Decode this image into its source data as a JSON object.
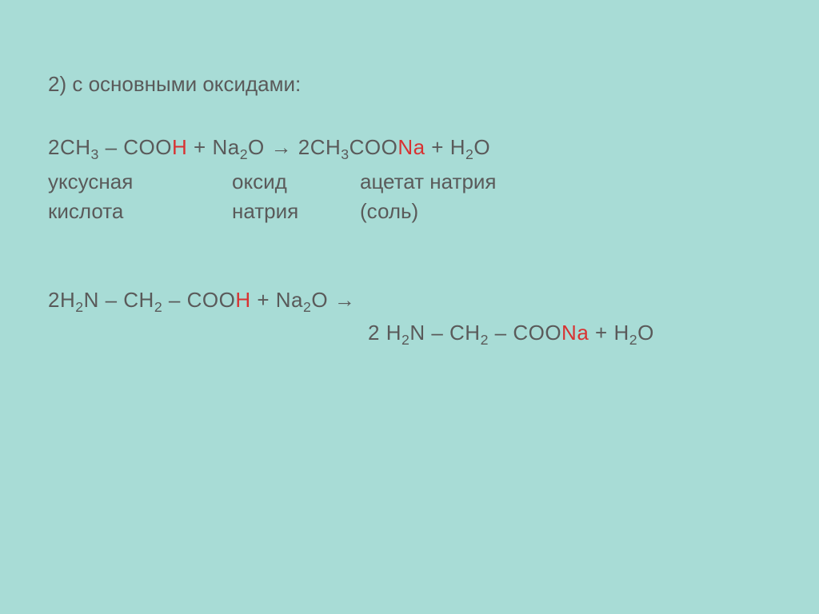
{
  "slide": {
    "background_color": "#a8dcd6",
    "text_color": "#5a5a5a",
    "highlight_color": "#d83232",
    "font_family": "Arial",
    "heading_fontsize": 26,
    "body_fontsize": 26
  },
  "heading": "2) с основными оксидами:",
  "equation1": {
    "reactant1_coef": "2",
    "reactant1_part1": "CH",
    "reactant1_sub1": "3",
    "reactant1_part2": " – COO",
    "reactant1_highlight": "H",
    "plus1": " + ",
    "reactant2_part1": "Na",
    "reactant2_sub1": "2",
    "reactant2_part2": "O",
    "arrow": " → ",
    "product1_coef": "2",
    "product1_part1": "CH",
    "product1_sub1": "3",
    "product1_part2": "COO",
    "product1_highlight": "Na",
    "plus2": " + ",
    "product2_part1": "H",
    "product2_sub1": "2",
    "product2_part2": "O"
  },
  "labels1": {
    "row1": {
      "col1": "уксусная",
      "col2": "оксид",
      "col3": "ацетат натрия"
    },
    "row2": {
      "col1": "кислота",
      "col2": "натрия",
      "col3": "(соль)"
    }
  },
  "equation2": {
    "line1_coef": "2",
    "line1_part1": "H",
    "line1_sub1": "2",
    "line1_part2": "N – CH",
    "line1_sub2": "2",
    "line1_part3": " – COO",
    "line1_highlight1": "H",
    "line1_plus": " + ",
    "line1_reactant2_part1": "Na",
    "line1_reactant2_sub": "2",
    "line1_reactant2_part2": "O",
    "line1_arrow": " →",
    "line2_coef": "2 ",
    "line2_part1": "H",
    "line2_sub1": "2",
    "line2_part2": "N – CH",
    "line2_sub2": "2",
    "line2_part3": " – COO",
    "line2_highlight": "Na",
    "line2_plus": " + ",
    "line2_product2_part1": "H",
    "line2_product2_sub": "2",
    "line2_product2_part2": "O"
  }
}
